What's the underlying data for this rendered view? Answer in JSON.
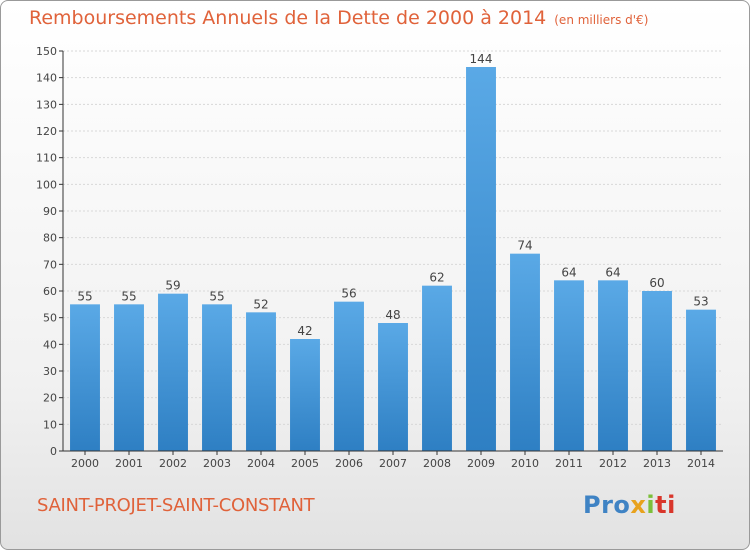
{
  "header": {
    "title": "Remboursements Annuels de la Dette de 2000 à 2014",
    "subtitle": "(en milliers d'€)"
  },
  "footer": {
    "place": "SAINT-PROJET-SAINT-CONSTANT",
    "logo_parts": [
      "Pro",
      "x",
      "i",
      "ti"
    ]
  },
  "colors": {
    "title": "#e0623a",
    "bar_top": "#5aa9e6",
    "bar_bottom": "#2e7fc3",
    "grid": "#d8d8d8",
    "axis": "#333333"
  },
  "chart_data": {
    "type": "bar",
    "title": "Remboursements Annuels de la Dette de 2000 à 2014",
    "subtitle": "(en milliers d'€)",
    "xlabel": "",
    "ylabel": "",
    "categories": [
      "2000",
      "2001",
      "2002",
      "2003",
      "2004",
      "2005",
      "2006",
      "2007",
      "2008",
      "2009",
      "2010",
      "2011",
      "2012",
      "2013",
      "2014"
    ],
    "values": [
      55,
      55,
      59,
      55,
      52,
      42,
      56,
      48,
      62,
      144,
      74,
      64,
      64,
      60,
      53
    ],
    "ylim": [
      0,
      150
    ],
    "yticks": [
      0,
      10,
      20,
      30,
      40,
      50,
      60,
      70,
      80,
      90,
      100,
      110,
      120,
      130,
      140,
      150
    ],
    "grid": true,
    "legend": "none"
  }
}
